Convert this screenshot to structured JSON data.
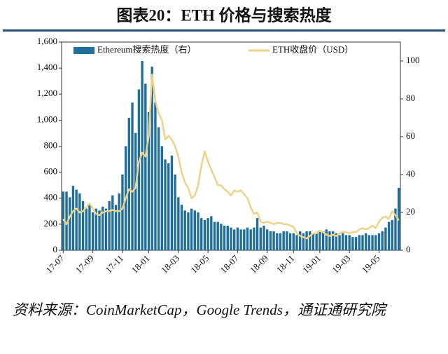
{
  "chart_data": {
    "type": "bar-line",
    "title": "图表20：ETH 价格与搜索热度",
    "source": "资料来源：CoinMarketCap，Google Trends，通证通研究院",
    "categories": [
      "17-07",
      null,
      null,
      null,
      null,
      null,
      null,
      null,
      null,
      "17-09",
      null,
      null,
      null,
      null,
      null,
      null,
      null,
      null,
      "17-11",
      null,
      null,
      null,
      null,
      null,
      null,
      null,
      "18-01",
      null,
      null,
      null,
      null,
      null,
      null,
      null,
      null,
      "18-03",
      null,
      null,
      null,
      null,
      null,
      null,
      null,
      null,
      "18-05",
      null,
      null,
      null,
      null,
      null,
      null,
      null,
      null,
      "18-07",
      null,
      null,
      null,
      null,
      null,
      null,
      null,
      null,
      "18-09",
      null,
      null,
      null,
      null,
      null,
      null,
      null,
      "18-11",
      null,
      null,
      null,
      null,
      null,
      null,
      null,
      "19-01",
      null,
      null,
      null,
      null,
      null,
      null,
      null,
      null,
      "19-03",
      null,
      null,
      null,
      null,
      null,
      null,
      null,
      null,
      "19-05",
      null,
      null,
      null,
      null,
      null,
      null
    ],
    "series": [
      {
        "name": "Ethereum搜索热度（右）",
        "type": "bar",
        "axis": "y2",
        "color": "#1f6e9c",
        "values": [
          31,
          31,
          28,
          34,
          32,
          30,
          26,
          22,
          24,
          20,
          22,
          21,
          23,
          22,
          26,
          29,
          24,
          30,
          40,
          55,
          70,
          78,
          62,
          85,
          100,
          88,
          73,
          97,
          78,
          65,
          55,
          48,
          46,
          50,
          40,
          28,
          24,
          21,
          20,
          22,
          21,
          20,
          17,
          16,
          17,
          18,
          15,
          15,
          14,
          13,
          13,
          12,
          11,
          12,
          11,
          11,
          12,
          11,
          12,
          17,
          12,
          13,
          11,
          10,
          10,
          9,
          9,
          10,
          10,
          9,
          9,
          8,
          10,
          9,
          10,
          10,
          9,
          9,
          10,
          10,
          11,
          10,
          10,
          9,
          8,
          9,
          8,
          8,
          7,
          7,
          8,
          8,
          9,
          8,
          8,
          8,
          9,
          10,
          12,
          15,
          16,
          22,
          33
        ]
      },
      {
        "name": "ETH收盘价（USD）",
        "type": "line",
        "axis": "y",
        "color": "#eed28a",
        "values": [
          240,
          200,
          260,
          300,
          320,
          290,
          300,
          330,
          360,
          320,
          280,
          270,
          290,
          300,
          300,
          310,
          300,
          300,
          320,
          400,
          470,
          450,
          480,
          680,
          750,
          720,
          880,
          1350,
          1150,
          1050,
          1000,
          850,
          880,
          850,
          800,
          720,
          600,
          520,
          480,
          400,
          420,
          500,
          650,
          760,
          680,
          620,
          560,
          500,
          500,
          470,
          450,
          420,
          460,
          450,
          460,
          430,
          400,
          330,
          280,
          290,
          220,
          210,
          220,
          210,
          200,
          210,
          210,
          200,
          200,
          190,
          180,
          130,
          110,
          100,
          90,
          110,
          130,
          130,
          150,
          140,
          120,
          110,
          120,
          110,
          130,
          140,
          140,
          130,
          140,
          140,
          160,
          170,
          160,
          170,
          190,
          170,
          220,
          250,
          260,
          240,
          300,
          270,
          230
        ]
      }
    ],
    "ylim": [
      0,
      1600
    ],
    "yticks": [
      0,
      200,
      400,
      600,
      800,
      {
        "value": 1000,
        "label": "1,000"
      },
      {
        "value": 1200,
        "label": "1,200"
      },
      {
        "value": 1400,
        "label": "1,400"
      },
      {
        "value": 1600,
        "label": "1,600"
      }
    ],
    "y2lim": [
      0,
      110
    ],
    "y2ticks": [
      0,
      20,
      40,
      60,
      80,
      100
    ]
  }
}
